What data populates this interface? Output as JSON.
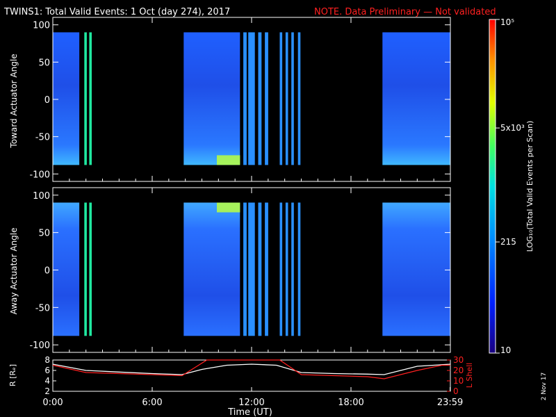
{
  "header": {
    "title": "TWINS1: Total Valid Events:  1 Oct (day 274), 2017",
    "note": "NOTE. Data Preliminary — Not validated"
  },
  "footer": {
    "xlabel": "Time (UT)",
    "side_date": "2 Nov 17"
  },
  "colors": {
    "background": "#000000",
    "axis": "#ffffff",
    "note": "#ff2020",
    "lshell": "#ff2020",
    "r_trace": "#ffffff"
  },
  "chart_data": [
    {
      "type": "heatmap",
      "name_visible": "",
      "ylabel": "Toward Actuator Angle",
      "ylim": [
        -110,
        110
      ],
      "y_ticks": [
        "100",
        "50",
        "0",
        "-50",
        "-100"
      ],
      "y_tick_values": [
        100,
        50,
        0,
        -50,
        -100
      ],
      "data_y_range": [
        -88,
        90
      ],
      "xlim": [
        0,
        24
      ],
      "data_blocks_hours": [
        [
          0.0,
          1.6
        ],
        [
          1.9,
          2.05
        ],
        [
          2.2,
          2.35
        ],
        [
          7.9,
          11.3
        ],
        [
          11.5,
          11.7
        ],
        [
          11.8,
          12.2
        ],
        [
          12.4,
          12.6
        ],
        [
          12.8,
          13.0
        ],
        [
          13.7,
          13.85
        ],
        [
          14.05,
          14.2
        ],
        [
          14.4,
          14.55
        ],
        [
          14.8,
          14.95
        ],
        [
          19.9,
          24.0
        ]
      ]
    },
    {
      "type": "heatmap",
      "ylabel": "Away Actuator Angle",
      "ylim": [
        -110,
        110
      ],
      "y_ticks": [
        "100",
        "50",
        "0",
        "-50",
        "-100"
      ],
      "y_tick_values": [
        100,
        50,
        0,
        -50,
        -100
      ],
      "data_y_range": [
        -88,
        90
      ],
      "xlim": [
        0,
        24
      ],
      "data_blocks_hours": [
        [
          0.0,
          1.6
        ],
        [
          1.9,
          2.05
        ],
        [
          2.2,
          2.35
        ],
        [
          7.9,
          11.3
        ],
        [
          11.5,
          11.7
        ],
        [
          11.8,
          12.2
        ],
        [
          12.4,
          12.6
        ],
        [
          12.8,
          13.0
        ],
        [
          13.7,
          13.85
        ],
        [
          14.05,
          14.2
        ],
        [
          14.4,
          14.55
        ],
        [
          14.8,
          14.95
        ],
        [
          19.9,
          24.0
        ]
      ]
    },
    {
      "type": "line",
      "ylabel_left": "R [Rₑ]",
      "ylabel_right": "L Shell",
      "xlabel": "Time (UT)",
      "xlim": [
        0,
        24
      ],
      "x_ticks": [
        "0:00",
        "6:00",
        "12:00",
        "18:00",
        "23:59"
      ],
      "x_tick_values": [
        0,
        6,
        12,
        18,
        23.983
      ],
      "ylim_left": [
        2,
        8
      ],
      "y_ticks_left": [
        "8",
        "6",
        "4",
        "2"
      ],
      "ylim_right": [
        0,
        30
      ],
      "y_ticks_right": [
        "30",
        "20",
        "10",
        "0"
      ],
      "series": [
        {
          "axis": "left",
          "x": [
            0,
            2,
            4,
            6,
            7.8,
            9,
            10.5,
            12,
            13.5,
            15,
            17,
            19,
            20,
            22,
            24
          ],
          "values": [
            7.2,
            6.0,
            5.7,
            5.4,
            5.2,
            6.2,
            7.0,
            7.2,
            7.0,
            5.6,
            5.4,
            5.3,
            5.2,
            6.8,
            7.2
          ]
        },
        {
          "axis": "right",
          "x": [
            0,
            2,
            4,
            6,
            7.8,
            9.3,
            13.7,
            15,
            17,
            19,
            20,
            22,
            23.5,
            24
          ],
          "values": [
            25,
            18,
            17,
            16,
            15,
            30,
            30,
            16,
            15,
            14,
            12,
            20,
            25,
            25
          ]
        }
      ]
    },
    {
      "type": "colorbar",
      "label": "LOG₁₀(Total Valid Events per Scan)",
      "scale": "log",
      "range": [
        10,
        100000
      ],
      "ticks": [
        {
          "label": "10⁵",
          "value": 100000
        },
        {
          "label": "5x10³",
          "value": 5000
        },
        {
          "label": "215",
          "value": 215
        },
        {
          "label": "10",
          "value": 10
        }
      ]
    }
  ]
}
